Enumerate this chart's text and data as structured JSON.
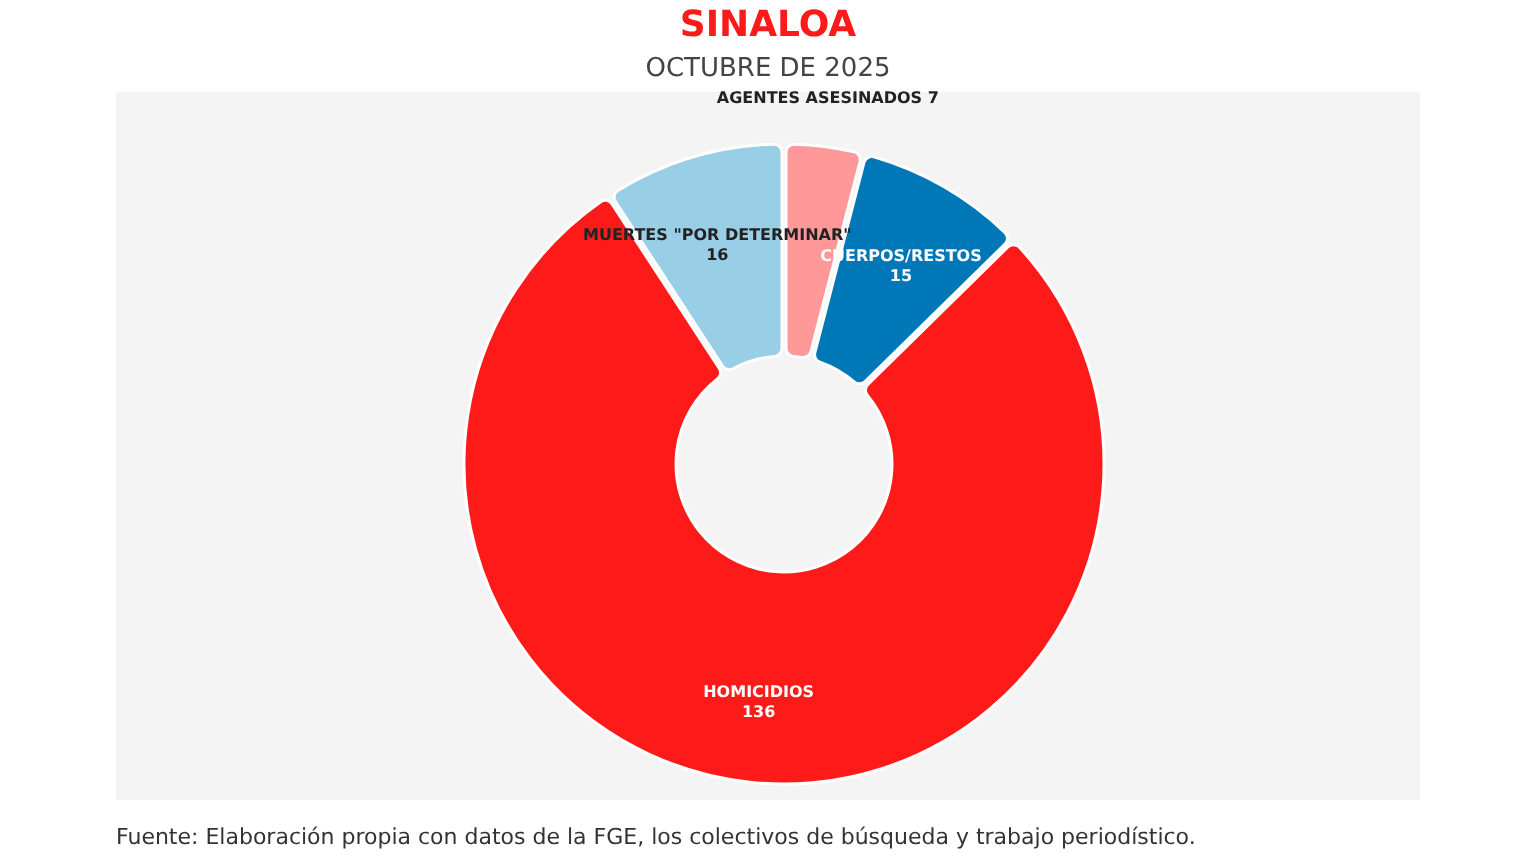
{
  "chart_data": {
    "type": "donut",
    "title": "SINALOA",
    "subtitle": "OCTUBRE DE 2025",
    "categories": [
      "AGENTES ASESINADOS",
      "CUERPOS/RESTOS",
      "HOMICIDIOS",
      "MUERTES \"POR DETERMINAR\""
    ],
    "values": [
      7,
      15,
      136,
      16
    ],
    "colors": [
      "#ff9999",
      "#0077b6",
      "#ff1a1a",
      "#99cfe6"
    ],
    "data_labels": true,
    "annotations": [
      "Fuente: Elaboración propia con datos de la FGE, los colectivos de búsqueda y trabajo periodístico."
    ]
  }
}
